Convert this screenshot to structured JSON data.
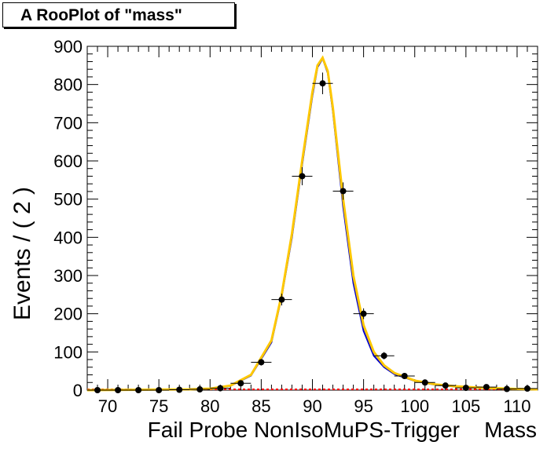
{
  "chart_data": {
    "type": "line",
    "title": "A RooPlot of \"mass\"",
    "xlabel": "Fail Probe NonIsoMuPS-Trigger    Mass",
    "ylabel": "Events / ( 2 )",
    "xlim": [
      68,
      112
    ],
    "ylim": [
      0,
      900
    ],
    "x_ticks": [
      70,
      75,
      80,
      85,
      90,
      95,
      100,
      105,
      110
    ],
    "y_ticks": [
      0,
      100,
      200,
      300,
      400,
      500,
      600,
      700,
      800,
      900
    ],
    "grid": false,
    "legend": "none",
    "points": {
      "name": "data",
      "x": [
        69,
        71,
        73,
        75,
        77,
        79,
        81,
        83,
        85,
        87,
        89,
        91,
        93,
        95,
        97,
        99,
        101,
        103,
        105,
        107,
        109,
        111
      ],
      "y": [
        0,
        0,
        0,
        0,
        1,
        2,
        5,
        18,
        73,
        237,
        560,
        803,
        521,
        200,
        90,
        37,
        20,
        12,
        6,
        8,
        3,
        4
      ],
      "yerr": [
        0,
        0,
        0,
        0,
        1,
        1.4,
        2.2,
        4.2,
        8.5,
        15.4,
        23.7,
        28.3,
        22.8,
        14.1,
        9.5,
        6.1,
        4.5,
        3.5,
        2.4,
        2.8,
        1.7,
        2
      ]
    },
    "series": [
      {
        "color": "#ffc800",
        "x": [
          68,
          78,
          80,
          82,
          84,
          86,
          87,
          88,
          89,
          90,
          90.5,
          91,
          91.5,
          92,
          93,
          94,
          95,
          96,
          97,
          98,
          100,
          102,
          104,
          106,
          108,
          110,
          112
        ],
        "y": [
          0,
          2,
          4,
          12,
          40,
          130,
          250,
          410,
          600,
          780,
          850,
          870,
          835,
          740,
          500,
          300,
          170,
          100,
          65,
          45,
          25,
          15,
          10,
          7,
          5,
          3,
          2
        ]
      },
      {
        "color": "#0000cc",
        "x": [
          68,
          78,
          80,
          82,
          84,
          86,
          87,
          88,
          89,
          90,
          90.5,
          91,
          91.5,
          92,
          93,
          94,
          95,
          96,
          97,
          98,
          100,
          102,
          104,
          106,
          108,
          110,
          112
        ],
        "y": [
          0,
          2,
          4,
          11,
          38,
          125,
          245,
          400,
          590,
          770,
          845,
          868,
          830,
          730,
          480,
          280,
          155,
          90,
          60,
          42,
          24,
          14,
          9,
          6,
          4,
          3,
          2
        ]
      },
      {
        "color": "#ff0000",
        "x": [
          68,
          112
        ],
        "y": [
          2,
          2
        ]
      }
    ]
  }
}
